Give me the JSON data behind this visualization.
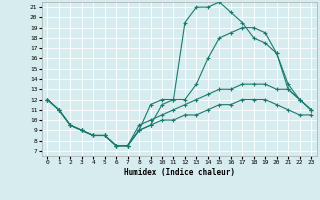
{
  "xlabel": "Humidex (Indice chaleur)",
  "xlim": [
    -0.5,
    23.5
  ],
  "ylim": [
    6.5,
    21.5
  ],
  "yticks": [
    7,
    8,
    9,
    10,
    11,
    12,
    13,
    14,
    15,
    16,
    17,
    18,
    19,
    20,
    21
  ],
  "xticks": [
    0,
    1,
    2,
    3,
    4,
    5,
    6,
    7,
    8,
    9,
    10,
    11,
    12,
    13,
    14,
    15,
    16,
    17,
    18,
    19,
    20,
    21,
    22,
    23
  ],
  "bg_color": "#d6ecee",
  "grid_color": "#ffffff",
  "line_color": "#1a7a6e",
  "lines": [
    {
      "x": [
        0,
        1,
        2,
        3,
        4,
        5,
        6,
        7,
        8,
        9,
        10,
        11,
        12,
        13,
        14,
        15,
        16,
        17,
        18,
        19,
        20,
        21,
        22,
        23
      ],
      "y": [
        12,
        11,
        9.5,
        9,
        8.5,
        8.5,
        7.5,
        7.5,
        9,
        11.5,
        12,
        12,
        19.5,
        21,
        21,
        21.5,
        20.5,
        19.5,
        18,
        17.5,
        16.5,
        13.5,
        12,
        11
      ]
    },
    {
      "x": [
        0,
        1,
        2,
        3,
        4,
        5,
        6,
        7,
        8,
        9,
        10,
        11,
        12,
        13,
        14,
        15,
        16,
        17,
        18,
        19,
        20,
        21,
        22,
        23
      ],
      "y": [
        12,
        11,
        9.5,
        9,
        8.5,
        8.5,
        7.5,
        7.5,
        9,
        9.5,
        11.5,
        12,
        12,
        13.5,
        16,
        18,
        18.5,
        19,
        19,
        18.5,
        16.5,
        13,
        12,
        11
      ]
    },
    {
      "x": [
        0,
        1,
        2,
        3,
        4,
        5,
        6,
        7,
        8,
        9,
        10,
        11,
        12,
        13,
        14,
        15,
        16,
        17,
        18,
        19,
        20,
        21,
        22,
        23
      ],
      "y": [
        12,
        11,
        9.5,
        9,
        8.5,
        8.5,
        7.5,
        7.5,
        9.5,
        10,
        10.5,
        11,
        11.5,
        12,
        12.5,
        13,
        13,
        13.5,
        13.5,
        13.5,
        13,
        13,
        12,
        11
      ]
    },
    {
      "x": [
        0,
        1,
        2,
        3,
        4,
        5,
        6,
        7,
        8,
        9,
        10,
        11,
        12,
        13,
        14,
        15,
        16,
        17,
        18,
        19,
        20,
        21,
        22,
        23
      ],
      "y": [
        12,
        11,
        9.5,
        9,
        8.5,
        8.5,
        7.5,
        7.5,
        9,
        9.5,
        10,
        10,
        10.5,
        10.5,
        11,
        11.5,
        11.5,
        12,
        12,
        12,
        11.5,
        11,
        10.5,
        10.5
      ]
    }
  ]
}
